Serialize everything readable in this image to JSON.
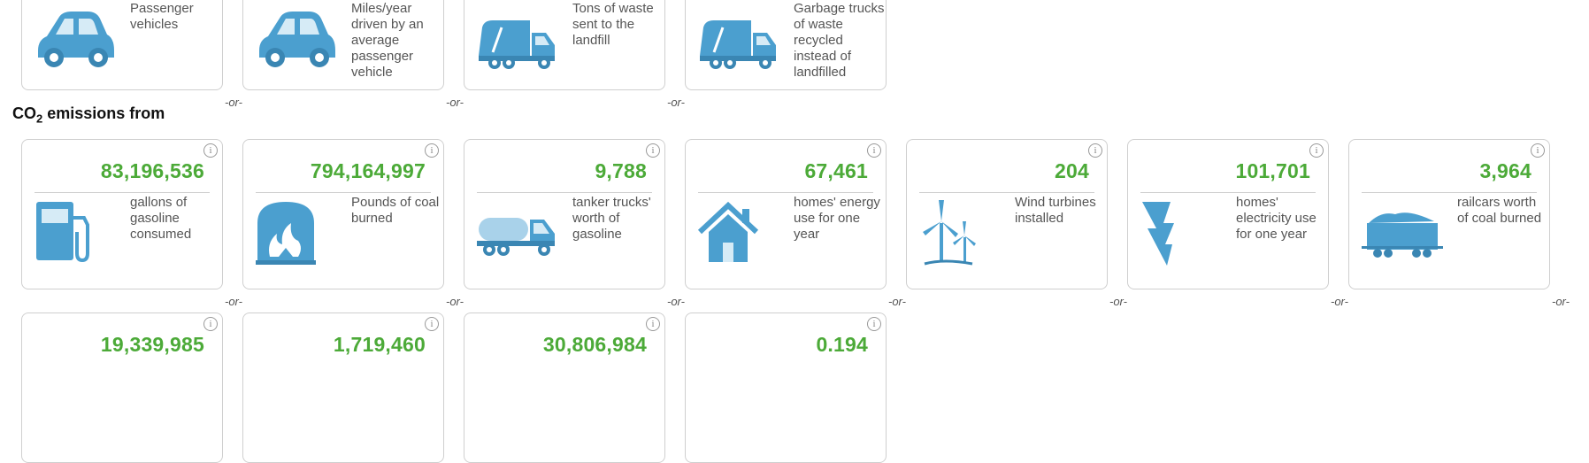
{
  "top_row": [
    {
      "label": "Passenger vehicles",
      "icon": "car-icon"
    },
    {
      "label": "Miles/year driven by an average passenger vehicle",
      "icon": "car-icon"
    },
    {
      "label": "Tons of waste sent to the landfill",
      "icon": "garbage-truck-icon"
    },
    {
      "label": "Garbage trucks of waste recycled instead of landfilled",
      "icon": "garbage-truck-icon"
    }
  ],
  "separator": "-or-",
  "heading": {
    "prefix": "CO",
    "sub": "2",
    "suffix": " emissions from"
  },
  "emissions": [
    {
      "value": "83,196,536",
      "label": "gallons of gasoline consumed",
      "icon": "gas-pump-icon"
    },
    {
      "value": "794,164,997",
      "label": "Pounds of coal burned",
      "icon": "coal-fire-icon"
    },
    {
      "value": "9,788",
      "label": "tanker trucks' worth of gasoline",
      "icon": "tanker-truck-icon"
    },
    {
      "value": "67,461",
      "label": "homes' energy use for one year",
      "icon": "house-icon"
    },
    {
      "value": "204",
      "label": "Wind turbines installed",
      "icon": "wind-turbine-icon"
    },
    {
      "value": "101,701",
      "label": "homes' electricity use for one year",
      "icon": "lightning-bolt-icon"
    },
    {
      "value": "3,964",
      "label": "railcars worth of coal burned",
      "icon": "railcar-icon"
    }
  ],
  "bottom_row": [
    {
      "value": "19,339,985"
    },
    {
      "value": "1,719,460"
    },
    {
      "value": "30,806,984"
    },
    {
      "value": "0.194"
    }
  ],
  "info_glyph": "i",
  "colors": {
    "value_green": "#4caa38",
    "icon_blue": "#4b9fcf",
    "border": "#cfcfcf"
  }
}
